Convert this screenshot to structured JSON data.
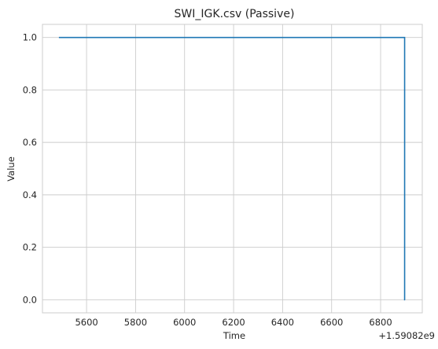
{
  "chart_data": {
    "type": "line",
    "title": "SWI_IGK.csv (Passive)",
    "xlabel": "Time",
    "ylabel": "Value",
    "x_offset_label": "+1.59082e9",
    "x_ticks": [
      {
        "value": 5600,
        "label": "5600"
      },
      {
        "value": 5800,
        "label": "5800"
      },
      {
        "value": 6000,
        "label": "6000"
      },
      {
        "value": 6200,
        "label": "6200"
      },
      {
        "value": 6400,
        "label": "6400"
      },
      {
        "value": 6600,
        "label": "6600"
      },
      {
        "value": 6800,
        "label": "6800"
      }
    ],
    "y_ticks": [
      {
        "value": 0.0,
        "label": "0.0"
      },
      {
        "value": 0.2,
        "label": "0.2"
      },
      {
        "value": 0.4,
        "label": "0.4"
      },
      {
        "value": 0.6,
        "label": "0.6"
      },
      {
        "value": 0.8,
        "label": "0.8"
      },
      {
        "value": 1.0,
        "label": "1.0"
      }
    ],
    "xlim": [
      5420,
      6970
    ],
    "ylim": [
      -0.05,
      1.05
    ],
    "grid": true,
    "series": [
      {
        "color": "#1f77b4",
        "x": [
          5487,
          5600,
          5800,
          6000,
          6200,
          6400,
          6600,
          6800,
          6898,
          6898,
          6900
        ],
        "y": [
          1,
          1,
          1,
          1,
          1,
          1,
          1,
          1,
          1,
          0.0,
          0.0
        ]
      }
    ]
  },
  "colors": {
    "grid": "#cccccc",
    "axes_edge": "#cccccc",
    "text": "#262626",
    "background": "#ffffff"
  }
}
